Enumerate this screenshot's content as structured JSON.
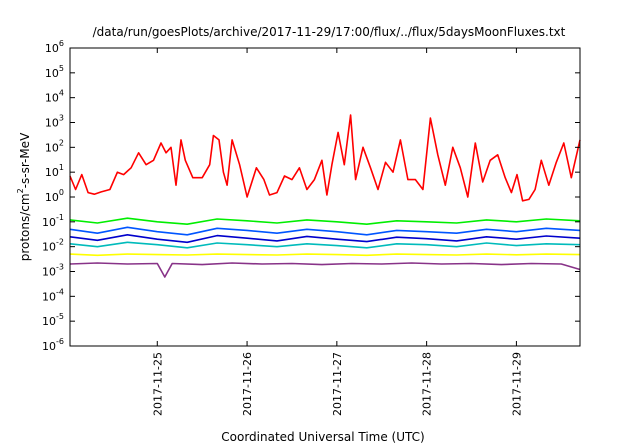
{
  "chart_data": {
    "type": "line",
    "title": "/data/run/goesPlots/archive/2017-11-29/17:00/flux/../flux/5daysMoonFluxes.txt",
    "xlabel": "Coordinated Universal Time (UTC)",
    "ylabel": {
      "prefix": "protons/cm",
      "sup": "2",
      "suffix": "-s-sr-MeV"
    },
    "yscale": "log",
    "ylim": [
      1e-06,
      1000000.0
    ],
    "y_ticks": [
      {
        "value": 1e-06,
        "base": "10",
        "exp": "-6"
      },
      {
        "value": 1e-05,
        "base": "10",
        "exp": "-5"
      },
      {
        "value": 0.0001,
        "base": "10",
        "exp": "-4"
      },
      {
        "value": 0.001,
        "base": "10",
        "exp": "-3"
      },
      {
        "value": 0.01,
        "base": "10",
        "exp": "-2"
      },
      {
        "value": 0.1,
        "base": "10",
        "exp": "-1"
      },
      {
        "value": 1,
        "base": "10",
        "exp": "0"
      },
      {
        "value": 10,
        "base": "10",
        "exp": "1"
      },
      {
        "value": 100,
        "base": "10",
        "exp": "2"
      },
      {
        "value": 1000,
        "base": "10",
        "exp": "3"
      },
      {
        "value": 10000,
        "base": "10",
        "exp": "4"
      },
      {
        "value": 100000,
        "base": "10",
        "exp": "5"
      },
      {
        "value": 1000000,
        "base": "10",
        "exp": "6"
      }
    ],
    "xlim": [
      "2017-11-24T00:40",
      "2017-11-29T17:00"
    ],
    "x_ticks": [
      {
        "value": "2017-11-25T00:00",
        "label": "2017-11-25"
      },
      {
        "value": "2017-11-26T00:00",
        "label": "2017-11-26"
      },
      {
        "value": "2017-11-27T00:00",
        "label": "2017-11-27"
      },
      {
        "value": "2017-11-28T00:00",
        "label": "2017-11-28"
      },
      {
        "value": "2017-11-29T00:00",
        "label": "2017-11-29"
      }
    ],
    "grid": false,
    "legend": "none",
    "series": [
      {
        "color": "#ff0000",
        "x": [
          "2017-11-24T00:40",
          "2017-11-24T02:10",
          "2017-11-24T03:50",
          "2017-11-24T05:30",
          "2017-11-24T07:10",
          "2017-11-24T09:00",
          "2017-11-24T11:20",
          "2017-11-24T13:20",
          "2017-11-24T15:00",
          "2017-11-24T17:00",
          "2017-11-24T19:00",
          "2017-11-24T21:00",
          "2017-11-24T23:00",
          "2017-11-25T01:00",
          "2017-11-25T02:20",
          "2017-11-25T03:40",
          "2017-11-25T05:00",
          "2017-11-25T06:20",
          "2017-11-25T07:30",
          "2017-11-25T09:30",
          "2017-11-25T12:00",
          "2017-11-25T14:00",
          "2017-11-25T15:00",
          "2017-11-25T16:30",
          "2017-11-25T17:40",
          "2017-11-25T18:40",
          "2017-11-25T20:00",
          "2017-11-25T22:00",
          "2017-11-26T00:00",
          "2017-11-26T02:30",
          "2017-11-26T04:30",
          "2017-11-26T06:00",
          "2017-11-26T08:00",
          "2017-11-26T10:00",
          "2017-11-26T12:00",
          "2017-11-26T14:00",
          "2017-11-26T16:00",
          "2017-11-26T18:00",
          "2017-11-26T20:00",
          "2017-11-26T21:20",
          "2017-11-26T22:40",
          "2017-11-27T00:20",
          "2017-11-27T02:00",
          "2017-11-27T03:40",
          "2017-11-27T05:00",
          "2017-11-27T07:00",
          "2017-11-27T09:00",
          "2017-11-27T11:00",
          "2017-11-27T13:00",
          "2017-11-27T15:00",
          "2017-11-27T17:00",
          "2017-11-27T19:00",
          "2017-11-27T21:00",
          "2017-11-27T23:00",
          "2017-11-28T01:00",
          "2017-11-28T03:00",
          "2017-11-28T05:00",
          "2017-11-28T07:00",
          "2017-11-28T09:00",
          "2017-11-28T11:00",
          "2017-11-28T13:00",
          "2017-11-28T15:00",
          "2017-11-28T17:00",
          "2017-11-28T19:00",
          "2017-11-28T21:00",
          "2017-11-28T22:40",
          "2017-11-29T00:10",
          "2017-11-29T01:40",
          "2017-11-29T03:20",
          "2017-11-29T05:00",
          "2017-11-29T06:40",
          "2017-11-29T08:40",
          "2017-11-29T10:40",
          "2017-11-29T12:40",
          "2017-11-29T14:40",
          "2017-11-29T17:00"
        ],
        "y": [
          7,
          2,
          8,
          1.5,
          1.3,
          1.6,
          2,
          10,
          8,
          15,
          60,
          20,
          30,
          150,
          60,
          100,
          3,
          200,
          30,
          6,
          6,
          20,
          300,
          200,
          10,
          3,
          200,
          20,
          1,
          15,
          5,
          1.2,
          1.5,
          7,
          5,
          15,
          2,
          5,
          30,
          1.2,
          20,
          400,
          20,
          2000,
          5,
          100,
          15,
          2,
          25,
          10,
          200,
          5,
          5,
          2,
          1500,
          50,
          3,
          100,
          15,
          1,
          150,
          4,
          30,
          50,
          6,
          1.5,
          8,
          0.7,
          0.8,
          2,
          30,
          3,
          25,
          150,
          6,
          200
        ]
      },
      {
        "color": "#00ee00",
        "x": [
          "2017-11-24T00:40",
          "2017-11-24T08:00",
          "2017-11-24T16:00",
          "2017-11-25T00:00",
          "2017-11-25T08:00",
          "2017-11-25T16:00",
          "2017-11-26T00:00",
          "2017-11-26T08:00",
          "2017-11-26T16:00",
          "2017-11-27T00:00",
          "2017-11-27T08:00",
          "2017-11-27T16:00",
          "2017-11-28T00:00",
          "2017-11-28T08:00",
          "2017-11-28T16:00",
          "2017-11-29T00:00",
          "2017-11-29T08:00",
          "2017-11-29T17:00"
        ],
        "y": [
          0.12,
          0.09,
          0.14,
          0.1,
          0.08,
          0.13,
          0.11,
          0.09,
          0.12,
          0.1,
          0.08,
          0.11,
          0.1,
          0.09,
          0.12,
          0.1,
          0.13,
          0.11
        ]
      },
      {
        "color": "#0055ff",
        "x": [
          "2017-11-24T00:40",
          "2017-11-24T08:00",
          "2017-11-24T16:00",
          "2017-11-25T00:00",
          "2017-11-25T08:00",
          "2017-11-25T16:00",
          "2017-11-26T00:00",
          "2017-11-26T08:00",
          "2017-11-26T16:00",
          "2017-11-27T00:00",
          "2017-11-27T08:00",
          "2017-11-27T16:00",
          "2017-11-28T00:00",
          "2017-11-28T08:00",
          "2017-11-28T16:00",
          "2017-11-29T00:00",
          "2017-11-29T08:00",
          "2017-11-29T17:00"
        ],
        "y": [
          0.05,
          0.035,
          0.06,
          0.04,
          0.03,
          0.055,
          0.045,
          0.035,
          0.05,
          0.04,
          0.03,
          0.045,
          0.04,
          0.035,
          0.05,
          0.04,
          0.055,
          0.045
        ]
      },
      {
        "color": "#0000cc",
        "x": [
          "2017-11-24T00:40",
          "2017-11-24T08:00",
          "2017-11-24T16:00",
          "2017-11-25T00:00",
          "2017-11-25T08:00",
          "2017-11-25T16:00",
          "2017-11-26T00:00",
          "2017-11-26T08:00",
          "2017-11-26T16:00",
          "2017-11-27T00:00",
          "2017-11-27T08:00",
          "2017-11-27T16:00",
          "2017-11-28T00:00",
          "2017-11-28T08:00",
          "2017-11-28T16:00",
          "2017-11-29T00:00",
          "2017-11-29T08:00",
          "2017-11-29T17:00"
        ],
        "y": [
          0.025,
          0.018,
          0.03,
          0.02,
          0.015,
          0.028,
          0.022,
          0.017,
          0.026,
          0.02,
          0.016,
          0.024,
          0.021,
          0.017,
          0.025,
          0.02,
          0.027,
          0.022
        ]
      },
      {
        "color": "#00bbbb",
        "x": [
          "2017-11-24T00:40",
          "2017-11-24T08:00",
          "2017-11-24T16:00",
          "2017-11-25T00:00",
          "2017-11-25T08:00",
          "2017-11-25T16:00",
          "2017-11-26T00:00",
          "2017-11-26T08:00",
          "2017-11-26T16:00",
          "2017-11-27T00:00",
          "2017-11-27T08:00",
          "2017-11-27T16:00",
          "2017-11-28T00:00",
          "2017-11-28T08:00",
          "2017-11-28T16:00",
          "2017-11-29T00:00",
          "2017-11-29T08:00",
          "2017-11-29T17:00"
        ],
        "y": [
          0.013,
          0.01,
          0.015,
          0.012,
          0.009,
          0.014,
          0.012,
          0.01,
          0.013,
          0.011,
          0.009,
          0.013,
          0.012,
          0.01,
          0.014,
          0.011,
          0.013,
          0.012
        ]
      },
      {
        "color": "#ffff00",
        "x": [
          "2017-11-24T00:40",
          "2017-11-24T08:00",
          "2017-11-24T16:00",
          "2017-11-25T00:00",
          "2017-11-25T08:00",
          "2017-11-25T16:00",
          "2017-11-26T00:00",
          "2017-11-26T08:00",
          "2017-11-26T16:00",
          "2017-11-27T00:00",
          "2017-11-27T08:00",
          "2017-11-27T16:00",
          "2017-11-28T00:00",
          "2017-11-28T08:00",
          "2017-11-28T16:00",
          "2017-11-29T00:00",
          "2017-11-29T08:00",
          "2017-11-29T17:00"
        ],
        "y": [
          0.005,
          0.0045,
          0.005,
          0.0048,
          0.0046,
          0.005,
          0.0048,
          0.0046,
          0.005,
          0.0048,
          0.0045,
          0.005,
          0.0048,
          0.0046,
          0.005,
          0.0047,
          0.005,
          0.0048
        ]
      },
      {
        "color": "#883388",
        "x": [
          "2017-11-24T00:40",
          "2017-11-24T08:00",
          "2017-11-24T16:00",
          "2017-11-25T00:00",
          "2017-11-25T02:00",
          "2017-11-25T04:00",
          "2017-11-25T12:00",
          "2017-11-25T20:00",
          "2017-11-26T04:00",
          "2017-11-26T12:00",
          "2017-11-26T20:00",
          "2017-11-27T04:00",
          "2017-11-27T12:00",
          "2017-11-27T20:00",
          "2017-11-28T04:00",
          "2017-11-28T12:00",
          "2017-11-28T20:00",
          "2017-11-29T04:00",
          "2017-11-29T12:00",
          "2017-11-29T17:00"
        ],
        "y": [
          0.002,
          0.0022,
          0.002,
          0.0021,
          0.0006,
          0.0021,
          0.0019,
          0.0022,
          0.002,
          0.0021,
          0.0019,
          0.0021,
          0.002,
          0.0022,
          0.002,
          0.0021,
          0.0019,
          0.0021,
          0.002,
          0.0012
        ]
      }
    ]
  }
}
